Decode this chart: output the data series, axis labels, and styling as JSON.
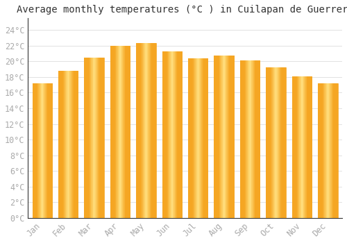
{
  "title": "Average monthly temperatures (°C ) in Cuilapan de Guerrero",
  "months": [
    "Jan",
    "Feb",
    "Mar",
    "Apr",
    "May",
    "Jun",
    "Jul",
    "Aug",
    "Sep",
    "Oct",
    "Nov",
    "Dec"
  ],
  "values": [
    17.2,
    18.8,
    20.5,
    22.0,
    22.3,
    21.3,
    20.4,
    20.7,
    20.1,
    19.2,
    18.1,
    17.2
  ],
  "bar_color_center": "#FFD966",
  "bar_color_edge": "#F5A623",
  "background_color": "#FFFFFF",
  "grid_color": "#DDDDDD",
  "yticks": [
    0,
    2,
    4,
    6,
    8,
    10,
    12,
    14,
    16,
    18,
    20,
    22,
    24
  ],
  "ytick_labels": [
    "0°C",
    "2°C",
    "4°C",
    "6°C",
    "8°C",
    "10°C",
    "12°C",
    "14°C",
    "16°C",
    "18°C",
    "20°C",
    "22°C",
    "24°C"
  ],
  "ylim": [
    0,
    25.5
  ],
  "title_fontsize": 10,
  "tick_fontsize": 8.5,
  "tick_color": "#AAAAAA",
  "font_family": "monospace",
  "bar_width": 0.75,
  "spine_color": "#333333"
}
